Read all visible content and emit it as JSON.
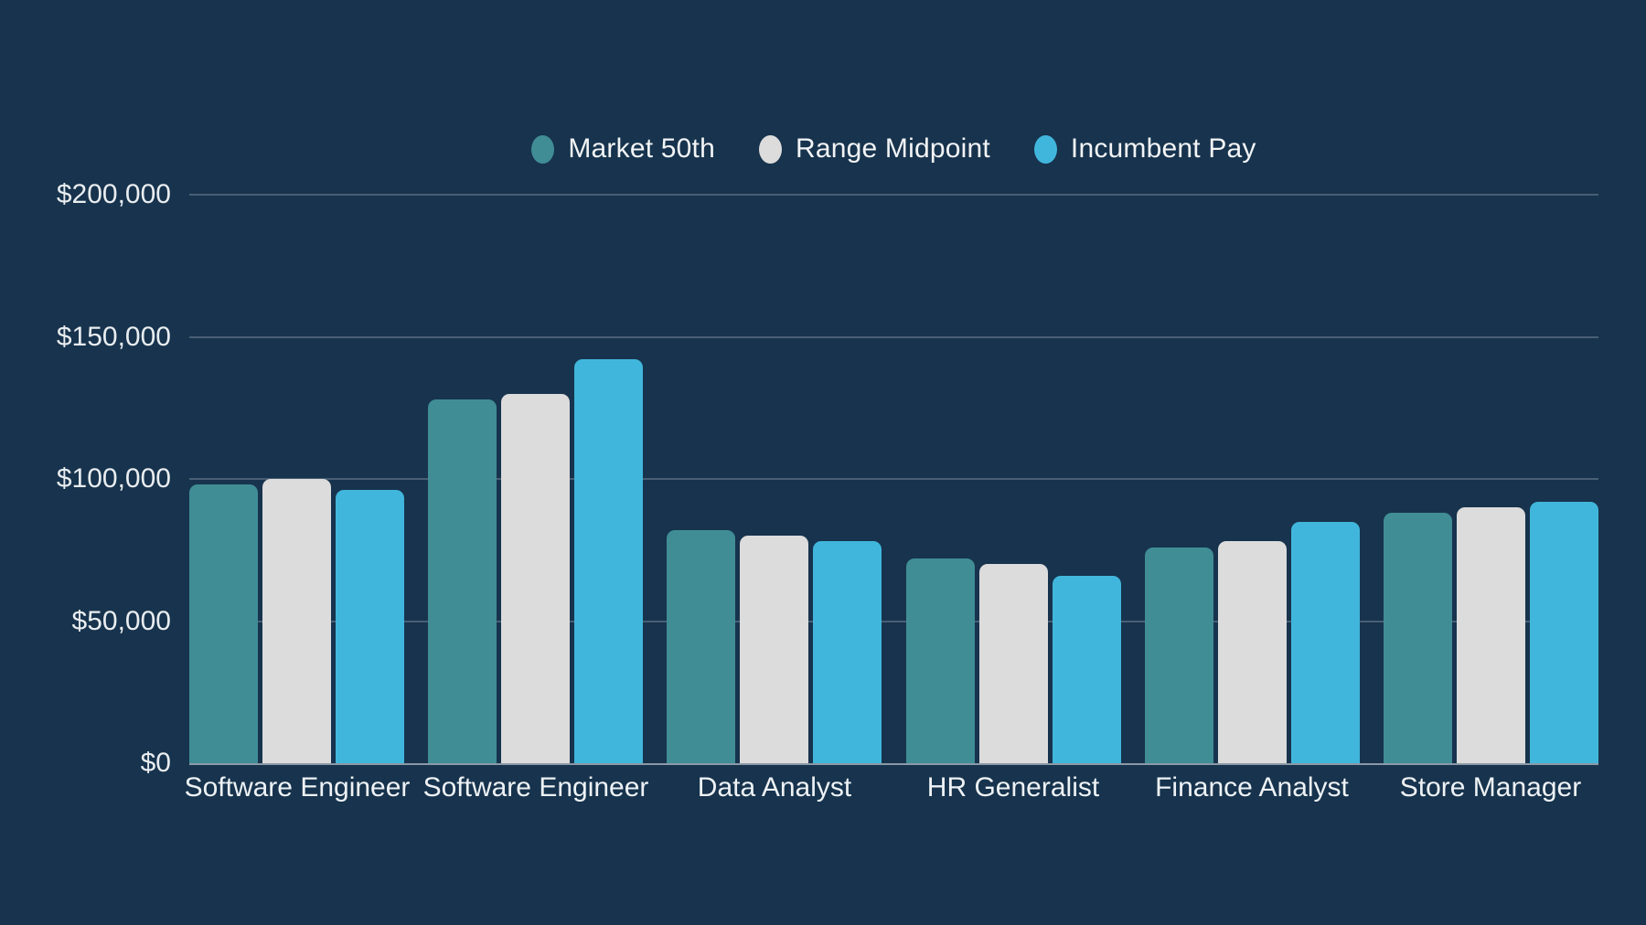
{
  "colors": {
    "background": "#17334D",
    "text": "#F2F4F6",
    "gridline": "rgba(255,255,255,0.22)",
    "axis_line": "rgba(255,255,255,0.50)"
  },
  "legend": {
    "position": "top-center",
    "items": [
      {
        "label": "Market 50th",
        "color": "#408D96"
      },
      {
        "label": "Range Midpoint",
        "color": "#DCDCDC"
      },
      {
        "label": "Incumbent Pay",
        "color": "#41B6DC"
      }
    ]
  },
  "chart_data": {
    "type": "bar",
    "title": "",
    "xlabel": "",
    "ylabel": "",
    "grid": true,
    "legend_position": "top-center",
    "ylim": [
      0,
      200000
    ],
    "yticks": [
      {
        "value": 0,
        "label": "$0"
      },
      {
        "value": 50000,
        "label": "$50,000"
      },
      {
        "value": 100000,
        "label": "$100,000"
      },
      {
        "value": 150000,
        "label": "$150,000"
      },
      {
        "value": 200000,
        "label": "$200,000"
      }
    ],
    "categories": [
      "Software Engineer",
      "Software Engineer",
      "Data Analyst",
      "HR Generalist",
      "Finance Analyst",
      "Store Manager"
    ],
    "series": [
      {
        "name": "Market 50th",
        "color": "#408D96",
        "values": [
          98000,
          128000,
          82000,
          72000,
          76000,
          88000
        ]
      },
      {
        "name": "Range Midpoint",
        "color": "#DCDCDC",
        "values": [
          100000,
          130000,
          80000,
          70000,
          78000,
          90000
        ]
      },
      {
        "name": "Incumbent Pay",
        "color": "#41B6DC",
        "values": [
          96000,
          142000,
          78000,
          66000,
          85000,
          92000
        ]
      }
    ]
  }
}
